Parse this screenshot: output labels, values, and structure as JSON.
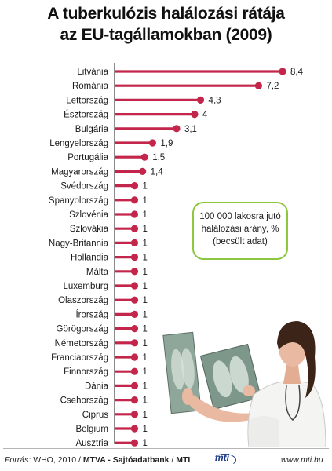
{
  "title": {
    "line1": "A tuberkulózis halálozási rátája",
    "line2": "az EU-tagállamokban (2009)"
  },
  "note": {
    "line1": "100 000 lakosra jutó",
    "line2": "halálozási arány, %",
    "line3": "(becsült adat)"
  },
  "footer": {
    "source_label": "Forrás:",
    "source_text": "WHO, 2010 /",
    "source_bold": "MTVA - Sajtóadatbank",
    "source_sep": "/",
    "source_mti": "MTI",
    "logo": "mti",
    "url": "www.mti.hu"
  },
  "colors": {
    "bar": "#c4254a",
    "axis": "#1a1a1a",
    "note_border": "#8dc63f"
  },
  "chart_data": {
    "type": "bar",
    "orientation": "horizontal",
    "style": "lollipop",
    "title": "A tuberkulózis halálozási rátája az EU-tagállamokban (2009)",
    "categories": [
      "Litvánia",
      "Románia",
      "Lettország",
      "Észtország",
      "Bulgária",
      "Lengyelország",
      "Portugália",
      "Magyarország",
      "Svédország",
      "Spanyolország",
      "Szlovénia",
      "Szlovákia",
      "Nagy-Britannia",
      "Hollandia",
      "Málta",
      "Luxemburg",
      "Olaszország",
      "Írország",
      "Görögország",
      "Németország",
      "Franciaország",
      "Finnország",
      "Dánia",
      "Csehország",
      "Ciprus",
      "Belgium",
      "Ausztria"
    ],
    "values": [
      8.4,
      7.2,
      4.3,
      4,
      3.1,
      1.9,
      1.5,
      1.4,
      1,
      1,
      1,
      1,
      1,
      1,
      1,
      1,
      1,
      1,
      1,
      1,
      1,
      1,
      1,
      1,
      1,
      1,
      1
    ],
    "value_labels": [
      "8,4",
      "7,2",
      "4,3",
      "4",
      "3,1",
      "1,9",
      "1,5",
      "1,4",
      "1",
      "1",
      "1",
      "1",
      "1",
      "1",
      "1",
      "1",
      "1",
      "1",
      "1",
      "1",
      "1",
      "1",
      "1",
      "1",
      "1",
      "1",
      "1"
    ],
    "xlim": [
      0,
      8.4
    ],
    "grid": false,
    "legend": "none"
  }
}
